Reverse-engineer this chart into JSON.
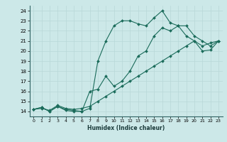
{
  "xlabel": "Humidex (Indice chaleur)",
  "bg_color": "#cce8e8",
  "grid_color": "#b8d8d8",
  "line_color": "#1a6b5a",
  "xlim": [
    -0.5,
    23.5
  ],
  "ylim": [
    13.5,
    24.5
  ],
  "xticks": [
    0,
    1,
    2,
    3,
    4,
    5,
    6,
    7,
    8,
    9,
    10,
    11,
    12,
    13,
    14,
    15,
    16,
    17,
    18,
    19,
    20,
    21,
    22,
    23
  ],
  "yticks": [
    14,
    15,
    16,
    17,
    18,
    19,
    20,
    21,
    22,
    23,
    24
  ],
  "line1_x": [
    0,
    1,
    2,
    3,
    4,
    5,
    6,
    7,
    8,
    9,
    10,
    11,
    12,
    13,
    14,
    15,
    16,
    17,
    18,
    19,
    20,
    21,
    22,
    23
  ],
  "line1_y": [
    14.2,
    14.4,
    14.0,
    14.5,
    14.1,
    14.0,
    14.0,
    14.3,
    19.0,
    21.0,
    22.5,
    23.0,
    23.0,
    22.7,
    22.5,
    23.3,
    24.0,
    22.8,
    22.5,
    21.5,
    21.0,
    20.0,
    20.1,
    21.0
  ],
  "line2_x": [
    0,
    1,
    2,
    3,
    4,
    5,
    6,
    7,
    8,
    9,
    10,
    11,
    12,
    13,
    14,
    15,
    16,
    17,
    18,
    19,
    20,
    21,
    22,
    23
  ],
  "line2_y": [
    14.2,
    14.4,
    14.0,
    14.5,
    14.2,
    14.1,
    14.0,
    16.0,
    16.2,
    17.5,
    16.5,
    17.0,
    18.0,
    19.5,
    20.0,
    21.5,
    22.3,
    22.0,
    22.5,
    22.5,
    21.5,
    21.0,
    20.5,
    21.0
  ],
  "line3_x": [
    0,
    1,
    2,
    3,
    4,
    5,
    6,
    7,
    8,
    9,
    10,
    11,
    12,
    13,
    14,
    15,
    16,
    17,
    18,
    19,
    20,
    21,
    22,
    23
  ],
  "line3_y": [
    14.2,
    14.3,
    14.1,
    14.6,
    14.3,
    14.2,
    14.3,
    14.5,
    15.0,
    15.5,
    16.0,
    16.5,
    17.0,
    17.5,
    18.0,
    18.5,
    19.0,
    19.5,
    20.0,
    20.5,
    21.0,
    20.5,
    20.8,
    21.0
  ]
}
